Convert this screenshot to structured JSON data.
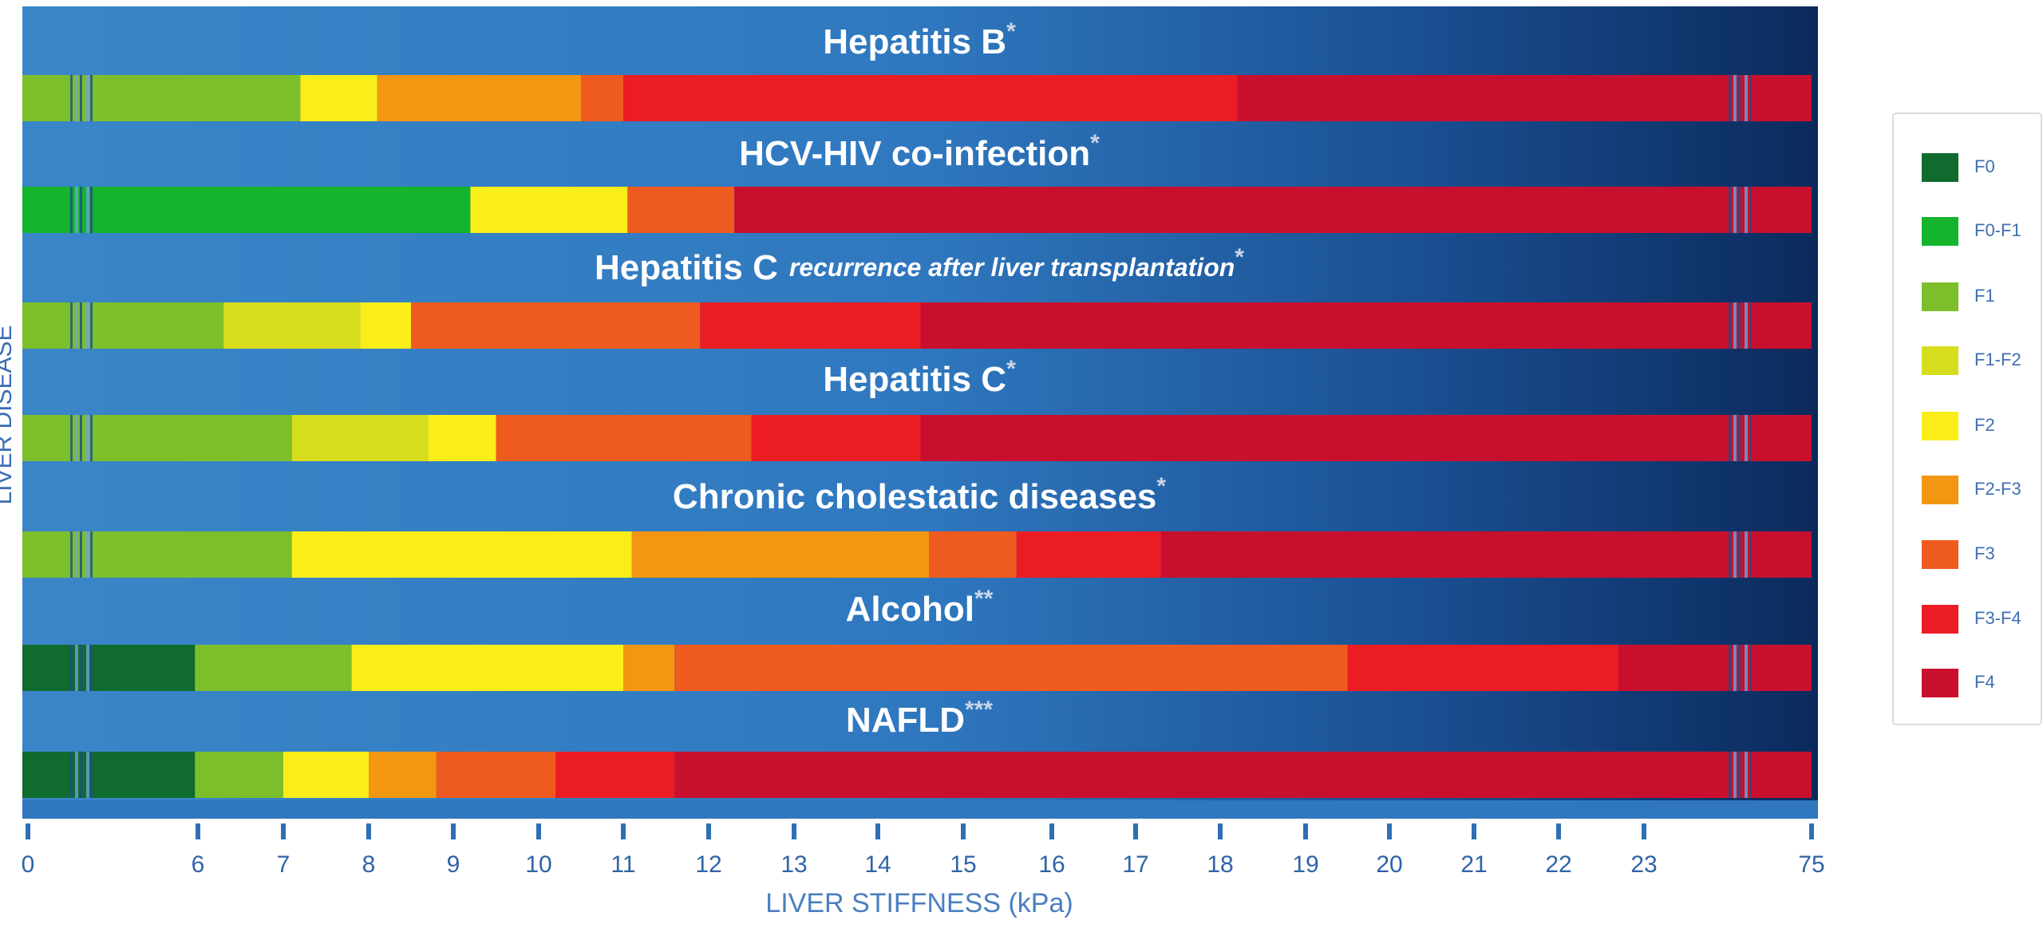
{
  "chart_data": {
    "type": "bar",
    "orientation": "horizontal-segmented",
    "title": "",
    "xlabel": "LIVER STIFFNESS (kPa)",
    "ylabel": "LIVER DISEASE",
    "x_ticks": [
      "0",
      "6",
      "7",
      "8",
      "9",
      "10",
      "11",
      "12",
      "13",
      "14",
      "15",
      "16",
      "17",
      "18",
      "19",
      "20",
      "21",
      "22",
      "23",
      "75"
    ],
    "x_tick_values": [
      0,
      6,
      7,
      8,
      9,
      10,
      11,
      12,
      13,
      14,
      15,
      16,
      17,
      18,
      19,
      20,
      21,
      22,
      23,
      75
    ],
    "axis_break_between": [
      23,
      75
    ],
    "legend": [
      {
        "key": "F0",
        "label": "F0",
        "color": "#0f6b2e"
      },
      {
        "key": "F0-F1",
        "label": "F0-F1",
        "color": "#14b42c"
      },
      {
        "key": "F1",
        "label": "F1",
        "color": "#7dbf2a"
      },
      {
        "key": "F1-F2",
        "label": "F1-F2",
        "color": "#d6dd1c"
      },
      {
        "key": "F2",
        "label": "F2",
        "color": "#f9ee19"
      },
      {
        "key": "F2-F3",
        "label": "F2-F3",
        "color": "#f39612"
      },
      {
        "key": "F3",
        "label": "F3",
        "color": "#ef5a1e"
      },
      {
        "key": "F3-F4",
        "label": "F3-F4",
        "color": "#ec1c24"
      },
      {
        "key": "F4",
        "label": "F4",
        "color": "#c8102e"
      }
    ],
    "series": [
      {
        "name": "Hepatitis B",
        "subtitle": "",
        "mark": "*",
        "segments": [
          {
            "stage": "F1",
            "from": 0,
            "to": 7.2
          },
          {
            "stage": "F2",
            "from": 7.2,
            "to": 8.1
          },
          {
            "stage": "F2-F3",
            "from": 8.1,
            "to": 10.5
          },
          {
            "stage": "F3",
            "from": 10.5,
            "to": 11.0
          },
          {
            "stage": "F3-F4",
            "from": 11.0,
            "to": 18.2
          },
          {
            "stage": "F4",
            "from": 18.2,
            "to": 75
          }
        ]
      },
      {
        "name": "HCV-HIV co-infection",
        "subtitle": "",
        "mark": "*",
        "segments": [
          {
            "stage": "F0-F1",
            "from": 0,
            "to": 9.2
          },
          {
            "stage": "F2",
            "from": 9.2,
            "to": 11.05
          },
          {
            "stage": "F3",
            "from": 11.05,
            "to": 12.3
          },
          {
            "stage": "F4",
            "from": 12.3,
            "to": 75
          }
        ]
      },
      {
        "name": "Hepatitis C",
        "subtitle": "recurrence after liver transplantation",
        "mark": "*",
        "segments": [
          {
            "stage": "F1",
            "from": 0,
            "to": 6.3
          },
          {
            "stage": "F1-F2",
            "from": 6.3,
            "to": 7.9
          },
          {
            "stage": "F2",
            "from": 7.9,
            "to": 8.5
          },
          {
            "stage": "F3",
            "from": 8.5,
            "to": 11.9
          },
          {
            "stage": "F3-F4",
            "from": 11.9,
            "to": 14.5
          },
          {
            "stage": "F4",
            "from": 14.5,
            "to": 75
          }
        ]
      },
      {
        "name": "Hepatitis C",
        "subtitle": "",
        "mark": "*",
        "segments": [
          {
            "stage": "F1",
            "from": 0,
            "to": 7.1
          },
          {
            "stage": "F1-F2",
            "from": 7.1,
            "to": 8.7
          },
          {
            "stage": "F2",
            "from": 8.7,
            "to": 9.5
          },
          {
            "stage": "F3",
            "from": 9.5,
            "to": 12.5
          },
          {
            "stage": "F3-F4",
            "from": 12.5,
            "to": 14.5
          },
          {
            "stage": "F4",
            "from": 14.5,
            "to": 75
          }
        ]
      },
      {
        "name": "Chronic cholestatic diseases",
        "subtitle": "",
        "mark": "*",
        "segments": [
          {
            "stage": "F1",
            "from": 0,
            "to": 7.1
          },
          {
            "stage": "F2",
            "from": 7.1,
            "to": 11.1
          },
          {
            "stage": "F2-F3",
            "from": 11.1,
            "to": 14.6
          },
          {
            "stage": "F3",
            "from": 14.6,
            "to": 15.6
          },
          {
            "stage": "F3-F4",
            "from": 15.6,
            "to": 17.3
          },
          {
            "stage": "F4",
            "from": 17.3,
            "to": 75
          }
        ]
      },
      {
        "name": "Alcohol",
        "subtitle": "",
        "mark": "**",
        "segments": [
          {
            "stage": "F0",
            "from": 0,
            "to": 5.9
          },
          {
            "stage": "F1",
            "from": 5.9,
            "to": 7.8
          },
          {
            "stage": "F2",
            "from": 7.8,
            "to": 11.0
          },
          {
            "stage": "F2-F3",
            "from": 11.0,
            "to": 11.6
          },
          {
            "stage": "F3",
            "from": 11.6,
            "to": 19.5
          },
          {
            "stage": "F3-F4",
            "from": 19.5,
            "to": 22.7
          },
          {
            "stage": "F4",
            "from": 22.7,
            "to": 75
          }
        ]
      },
      {
        "name": "NAFLD",
        "subtitle": "",
        "mark": "***",
        "segments": [
          {
            "stage": "F0",
            "from": 0,
            "to": 5.9
          },
          {
            "stage": "F1",
            "from": 5.9,
            "to": 7.0
          },
          {
            "stage": "F2",
            "from": 7.0,
            "to": 8.0
          },
          {
            "stage": "F2-F3",
            "from": 8.0,
            "to": 8.8
          },
          {
            "stage": "F3",
            "from": 8.8,
            "to": 10.2
          },
          {
            "stage": "F3-F4",
            "from": 10.2,
            "to": 11.6
          },
          {
            "stage": "F4",
            "from": 11.6,
            "to": 75
          }
        ]
      }
    ]
  }
}
